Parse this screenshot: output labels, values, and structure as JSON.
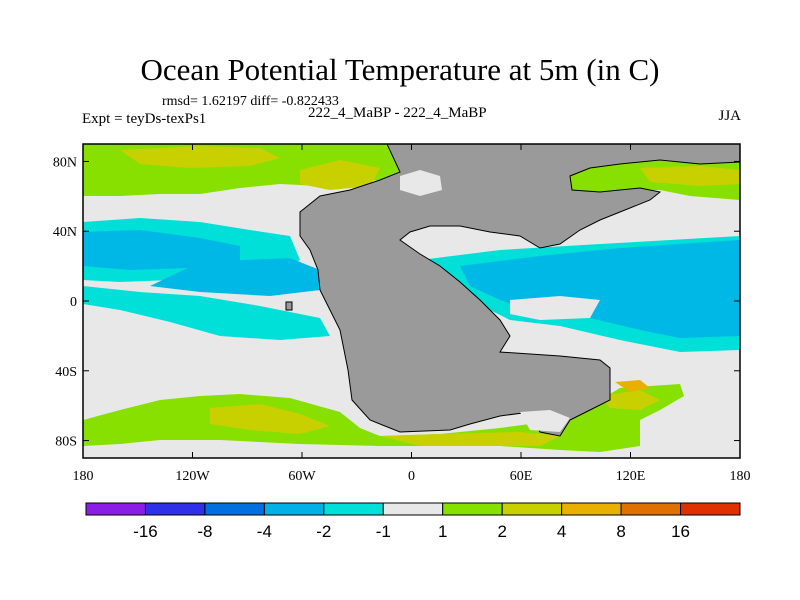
{
  "title": "Ocean Potential Temperature at 5m (in C)",
  "stats": "rmsd= 1.62197  diff= -0.822433",
  "left_label": "Expt = teyDs-texPs1",
  "center_label": "222_4_MaBP - 222_4_MaBP",
  "right_label": "JJA",
  "lon_ticks": [
    "180",
    "120W",
    "60W",
    "0",
    "60E",
    "120E",
    "180"
  ],
  "lat_ticks": [
    "80N",
    "40N",
    "0",
    "40S",
    "80S"
  ],
  "colors": {
    "land": "#9a9a9a",
    "neutral": "#e8e8e8",
    "cool1": "#00e0d8",
    "cool2": "#00b8e6",
    "warm1": "#88e000",
    "warm2": "#c8d000",
    "warm3": "#e8b000",
    "warm4": "#e07000"
  },
  "colorbar": {
    "labels": [
      "-16",
      "-8",
      "-4",
      "-2",
      "-1",
      "1",
      "2",
      "4",
      "8",
      "16"
    ],
    "colors": [
      "#8a1ee6",
      "#3030e8",
      "#0070e0",
      "#00b0e6",
      "#00e0d8",
      "#e8e8e8",
      "#88e000",
      "#c8d000",
      "#e8b000",
      "#e07000",
      "#e03000"
    ]
  }
}
